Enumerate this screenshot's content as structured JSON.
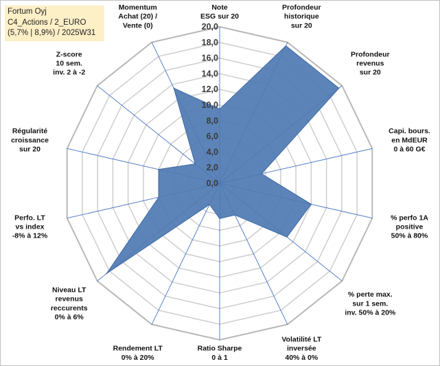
{
  "header": {
    "line1": "Fortum Oyj",
    "line2": "C4_Actions / 2_EURO",
    "line3": "(5,7% | 8,9%) / 2025W31"
  },
  "chart_data": {
    "type": "radar",
    "rmax": 20,
    "rticks": [
      "0,0",
      "2,0",
      "4,0",
      "6,0",
      "8,0",
      "10,0",
      "12,0",
      "14,0",
      "16,0",
      "18,0",
      "20,0"
    ],
    "axes": [
      [
        "Note",
        "ESG sur 20"
      ],
      [
        "Profondeur",
        "historique",
        "sur 20"
      ],
      [
        "Profondeur",
        "revenus",
        "sur 20"
      ],
      [
        "Capi. bours.",
        "en MdEUR",
        "0 à 60 G€"
      ],
      [
        "% perfo 1A",
        "positive",
        "50% à 80%"
      ],
      [
        "% perte max.",
        "sur 1 sem.",
        "inv. 50% à 20%"
      ],
      [
        "Volatilité LT",
        "inversée",
        "40% à 0%"
      ],
      [
        "Ratio Sharpe",
        "0 à 1"
      ],
      [
        "Rendement LT",
        "0% à 20%"
      ],
      [
        "Niveau LT",
        "revenus",
        "reccurents",
        "0% à 6%"
      ],
      [
        "Perfo. LT",
        "vs index",
        "-8% à 12%"
      ],
      [
        "Régularité",
        "croissance",
        "sur 20"
      ],
      [
        "Z-score",
        "10 sem.",
        "inv. 2 à -2"
      ],
      [
        "Momentum",
        "Achat (20) /",
        "Vente (0)"
      ]
    ],
    "values": [
      9.5,
      19.5,
      19.5,
      5.5,
      12.0,
      11.0,
      4.5,
      4.5,
      3.0,
      18.5,
      8.0,
      8.0,
      4.0,
      13.5
    ],
    "fill_color": "#4f7ab2",
    "grid_color": "#d0d0d0",
    "spoke_color": "#4472c4"
  }
}
